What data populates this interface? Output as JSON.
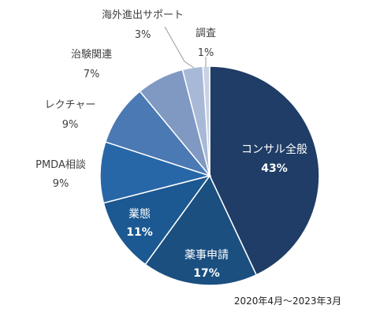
{
  "chart_data": {
    "type": "pie",
    "title": "",
    "period_note": "2020年4月～2023年3月",
    "start_angle_deg": 90,
    "direction": "clockwise",
    "slices": [
      {
        "name": "コンサル全般",
        "value": 43,
        "label": "43%",
        "color": "#1f3d66",
        "label_color": "#ffffff",
        "label_inside": true
      },
      {
        "name": "薬事申請",
        "value": 17,
        "label": "17%",
        "color": "#1a4f80",
        "label_color": "#ffffff",
        "label_inside": true
      },
      {
        "name": "業態",
        "value": 11,
        "label": "11%",
        "color": "#1c5891",
        "label_color": "#ffffff",
        "label_inside": true
      },
      {
        "name": "PMDA相談",
        "value": 9,
        "label": "9%",
        "color": "#2767a8",
        "label_color": "#404040",
        "label_inside": false
      },
      {
        "name": "レクチャー",
        "value": 9,
        "label": "9%",
        "color": "#4a79b4",
        "label_color": "#404040",
        "label_inside": false
      },
      {
        "name": "治験関連",
        "value": 7,
        "label": "7%",
        "color": "#7f99c2",
        "label_color": "#404040",
        "label_inside": false
      },
      {
        "name": "海外進出サポート",
        "value": 3,
        "label": "3%",
        "color": "#a7b9d6",
        "label_color": "#404040",
        "label_inside": false
      },
      {
        "name": "調査",
        "value": 1,
        "label": "1%",
        "color": "#c7d2e4",
        "label_color": "#404040",
        "label_inside": false
      }
    ]
  }
}
